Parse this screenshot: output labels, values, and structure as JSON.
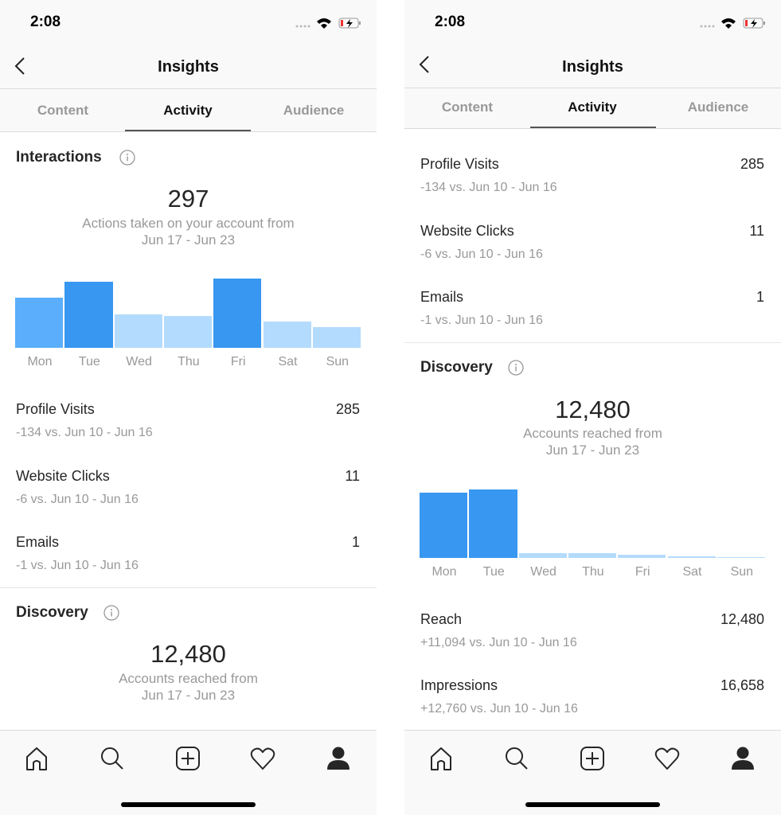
{
  "status": {
    "time": "2:08"
  },
  "header": {
    "title": "Insights",
    "back_icon": "chevron-left-icon"
  },
  "tabs": [
    {
      "label": "Content"
    },
    {
      "label": "Activity",
      "active": true
    },
    {
      "label": "Audience"
    }
  ],
  "colors": {
    "accent": "#3897f0",
    "light": "#b3dbfd",
    "medium": "#5aaefc"
  },
  "left": {
    "interactions": {
      "title": "Interactions",
      "value": "297",
      "caption": "Actions taken on your account from",
      "range": "Jun 17 - Jun 23"
    },
    "rows": [
      {
        "label": "Profile Visits",
        "value": "285",
        "change": "-134 vs. Jun 10 - Jun 16"
      },
      {
        "label": "Website Clicks",
        "value": "11",
        "change": "-6 vs. Jun 10 - Jun 16"
      },
      {
        "label": "Emails",
        "value": "1",
        "change": "-1 vs. Jun 10 - Jun 16"
      }
    ],
    "discovery": {
      "title": "Discovery",
      "value": "12,480",
      "caption": "Accounts reached from",
      "range": "Jun 17 - Jun 23"
    }
  },
  "right": {
    "rows": [
      {
        "label": "Profile Visits",
        "value": "285",
        "change": "-134 vs. Jun 10 - Jun 16"
      },
      {
        "label": "Website Clicks",
        "value": "11",
        "change": "-6 vs. Jun 10 - Jun 16"
      },
      {
        "label": "Emails",
        "value": "1",
        "change": "-1 vs. Jun 10 - Jun 16"
      }
    ],
    "discovery": {
      "title": "Discovery",
      "value": "12,480",
      "caption": "Accounts reached from",
      "range": "Jun 17 - Jun 23"
    },
    "rows2": [
      {
        "label": "Reach",
        "value": "12,480",
        "change": "+11,094 vs. Jun 10 - Jun 16"
      },
      {
        "label": "Impressions",
        "value": "16,658",
        "change": "+12,760 vs. Jun 10 - Jun 16"
      }
    ]
  },
  "chart_data": [
    {
      "type": "bar",
      "categories": [
        "Mon",
        "Tue",
        "Wed",
        "Thu",
        "Fri",
        "Sat",
        "Sun"
      ],
      "values": [
        50,
        66,
        33,
        32,
        69,
        26,
        21
      ],
      "bar_colors": [
        "#5aaefc",
        "#3897f0",
        "#b3dbfd",
        "#b3dbfd",
        "#3897f0",
        "#b3dbfd",
        "#b3dbfd"
      ]
    },
    {
      "type": "bar",
      "categories": [
        "Mon",
        "Tue",
        "Wed",
        "Thu",
        "Fri",
        "Sat",
        "Sun"
      ],
      "values": [
        5470,
        5740,
        400,
        400,
        270,
        130,
        70
      ],
      "bar_colors": [
        "#3897f0",
        "#3897f0",
        "#b3dbfd",
        "#b3dbfd",
        "#b3dbfd",
        "#b3dbfd",
        "#b3dbfd"
      ]
    }
  ],
  "bottom_nav": [
    "home-icon",
    "search-icon",
    "new-post-icon",
    "activity-heart-icon",
    "profile-icon"
  ]
}
